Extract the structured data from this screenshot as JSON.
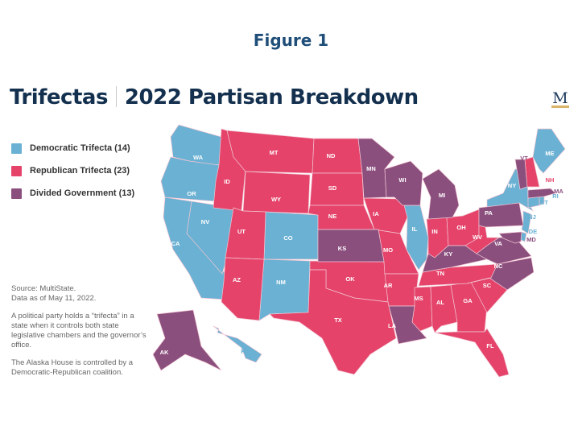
{
  "figure_label": "Figure 1",
  "title": {
    "part1": "Trifectas",
    "part2": "2022 Partisan Breakdown"
  },
  "logo_letter": "M",
  "colors": {
    "democratic": "#6ab1d3",
    "republican": "#e5436a",
    "divided": "#8b4f7e",
    "title": "#14304f"
  },
  "legend": [
    {
      "key": "democratic",
      "label": "Democratic Trifecta (14)"
    },
    {
      "key": "republican",
      "label": "Republican Trifecta (23)"
    },
    {
      "key": "divided",
      "label": "Divided Government (13)"
    }
  ],
  "notes": {
    "source": "Source: MultiState.",
    "date": "Data as of May 11, 2022.",
    "definition": "A political party holds a “trifecta” in a state when it controls both state legislative chambers and the governor’s office.",
    "alaska": "The Alaska House is controlled by a Democratic-Republican coalition."
  },
  "states": [
    {
      "code": "WA",
      "party": "democratic"
    },
    {
      "code": "OR",
      "party": "democratic"
    },
    {
      "code": "CA",
      "party": "democratic"
    },
    {
      "code": "NV",
      "party": "democratic"
    },
    {
      "code": "CO",
      "party": "democratic"
    },
    {
      "code": "NM",
      "party": "democratic"
    },
    {
      "code": "IL",
      "party": "democratic"
    },
    {
      "code": "NY",
      "party": "democratic"
    },
    {
      "code": "NJ",
      "party": "democratic"
    },
    {
      "code": "DE",
      "party": "democratic"
    },
    {
      "code": "CT",
      "party": "democratic"
    },
    {
      "code": "RI",
      "party": "democratic"
    },
    {
      "code": "ME",
      "party": "democratic"
    },
    {
      "code": "HI",
      "party": "democratic"
    },
    {
      "code": "ID",
      "party": "republican"
    },
    {
      "code": "MT",
      "party": "republican"
    },
    {
      "code": "WY",
      "party": "republican"
    },
    {
      "code": "UT",
      "party": "republican"
    },
    {
      "code": "AZ",
      "party": "republican"
    },
    {
      "code": "ND",
      "party": "republican"
    },
    {
      "code": "SD",
      "party": "republican"
    },
    {
      "code": "NE",
      "party": "republican"
    },
    {
      "code": "OK",
      "party": "republican"
    },
    {
      "code": "TX",
      "party": "republican"
    },
    {
      "code": "IA",
      "party": "republican"
    },
    {
      "code": "MO",
      "party": "republican"
    },
    {
      "code": "AR",
      "party": "republican"
    },
    {
      "code": "MS",
      "party": "republican"
    },
    {
      "code": "AL",
      "party": "republican"
    },
    {
      "code": "GA",
      "party": "republican"
    },
    {
      "code": "FL",
      "party": "republican"
    },
    {
      "code": "SC",
      "party": "republican"
    },
    {
      "code": "TN",
      "party": "republican"
    },
    {
      "code": "IN",
      "party": "republican"
    },
    {
      "code": "OH",
      "party": "republican"
    },
    {
      "code": "WV",
      "party": "republican"
    },
    {
      "code": "NH",
      "party": "republican"
    },
    {
      "code": "MN",
      "party": "divided"
    },
    {
      "code": "WI",
      "party": "divided"
    },
    {
      "code": "MI",
      "party": "divided"
    },
    {
      "code": "KS",
      "party": "divided"
    },
    {
      "code": "KY",
      "party": "divided"
    },
    {
      "code": "PA",
      "party": "divided"
    },
    {
      "code": "VA",
      "party": "divided"
    },
    {
      "code": "NC",
      "party": "divided"
    },
    {
      "code": "LA",
      "party": "divided"
    },
    {
      "code": "MD",
      "party": "divided"
    },
    {
      "code": "MA",
      "party": "divided"
    },
    {
      "code": "VT",
      "party": "divided"
    },
    {
      "code": "AK",
      "party": "divided"
    }
  ]
}
